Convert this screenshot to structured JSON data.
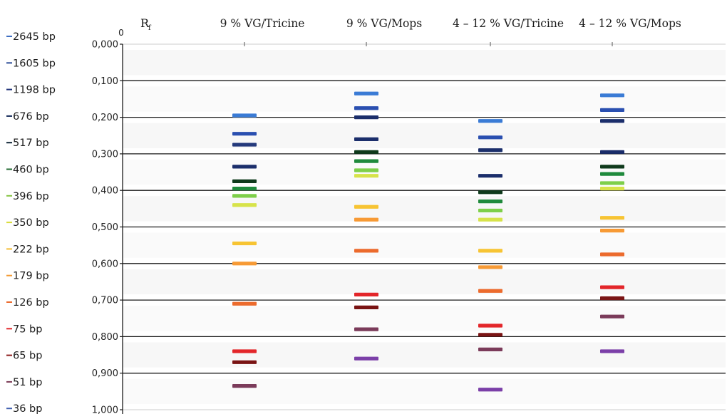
{
  "chart_data": {
    "type": "scatter",
    "title": "",
    "ylabel": "R",
    "ylabel_subscript": "f",
    "axis_origin_label": "0",
    "ylim": [
      0,
      1
    ],
    "y_ticks": [
      "0,000",
      "0,100",
      "0,200",
      "0,300",
      "0,400",
      "0,500",
      "0,600",
      "0,700",
      "0,800",
      "0,900",
      "1,000"
    ],
    "grid": true,
    "lanes": [
      "9 % VG/Tricine",
      "9 % VG/Mops",
      "4 – 12 % VG/Tricine",
      "4 – 12 % VG/Mops"
    ],
    "markers": [
      {
        "label": "2645 bp",
        "color": "#3f6fc2"
      },
      {
        "label": "1605 bp",
        "color": "#2f4f99"
      },
      {
        "label": "1198 bp",
        "color": "#1f3278"
      },
      {
        "label": "676 bp",
        "color": "#142a5a"
      },
      {
        "label": "517 bp",
        "color": "#0f2436"
      },
      {
        "label": "460 bp",
        "color": "#236b33"
      },
      {
        "label": "396 bp",
        "color": "#86c442"
      },
      {
        "label": "350 bp",
        "color": "#d9dc3b"
      },
      {
        "label": "222 bp",
        "color": "#f3bc35"
      },
      {
        "label": "179 bp",
        "color": "#f39a32"
      },
      {
        "label": "126 bp",
        "color": "#ec6b2d"
      },
      {
        "label": "75 bp",
        "color": "#e3262a"
      },
      {
        "label": "65 bp",
        "color": "#8c1a1a"
      },
      {
        "label": "51 bp",
        "color": "#7b3b55"
      },
      {
        "label": "36 bp",
        "color": "#3f5fb0"
      }
    ],
    "series": [
      {
        "lane": "9 % VG/Tricine",
        "bands": [
          {
            "rf": 0.195,
            "color": "#3a7bd5"
          },
          {
            "rf": 0.245,
            "color": "#2a4fb0"
          },
          {
            "rf": 0.275,
            "color": "#253a7c"
          },
          {
            "rf": 0.335,
            "color": "#1b2e6b"
          },
          {
            "rf": 0.375,
            "color": "#0f3a1c"
          },
          {
            "rf": 0.395,
            "color": "#1f8a3c"
          },
          {
            "rf": 0.415,
            "color": "#7ecf4a"
          },
          {
            "rf": 0.44,
            "color": "#d7e34a"
          },
          {
            "rf": 0.545,
            "color": "#f7c433"
          },
          {
            "rf": 0.6,
            "color": "#f79a35"
          },
          {
            "rf": 0.71,
            "color": "#ec6b2d"
          },
          {
            "rf": 0.84,
            "color": "#e3262a"
          },
          {
            "rf": 0.87,
            "color": "#7a1414"
          },
          {
            "rf": 0.935,
            "color": "#7b3b5a"
          }
        ]
      },
      {
        "lane": "9 % VG/Mops",
        "bands": [
          {
            "rf": 0.135,
            "color": "#3a7bd5"
          },
          {
            "rf": 0.175,
            "color": "#2a4fb0"
          },
          {
            "rf": 0.2,
            "color": "#1b2e6b"
          },
          {
            "rf": 0.26,
            "color": "#1b2e6b"
          },
          {
            "rf": 0.295,
            "color": "#0f3a1c"
          },
          {
            "rf": 0.32,
            "color": "#1f8a3c"
          },
          {
            "rf": 0.345,
            "color": "#7ecf4a"
          },
          {
            "rf": 0.36,
            "color": "#d7e34a"
          },
          {
            "rf": 0.445,
            "color": "#f7c433"
          },
          {
            "rf": 0.48,
            "color": "#f79a35"
          },
          {
            "rf": 0.565,
            "color": "#ec6b2d"
          },
          {
            "rf": 0.685,
            "color": "#e3262a"
          },
          {
            "rf": 0.72,
            "color": "#7a1414"
          },
          {
            "rf": 0.78,
            "color": "#7b3b5a"
          },
          {
            "rf": 0.86,
            "color": "#7b3fa8"
          }
        ]
      },
      {
        "lane": "4 – 12 % VG/Tricine",
        "bands": [
          {
            "rf": 0.21,
            "color": "#3a7bd5"
          },
          {
            "rf": 0.255,
            "color": "#2a4fb0"
          },
          {
            "rf": 0.29,
            "color": "#1b2e6b"
          },
          {
            "rf": 0.36,
            "color": "#1b2e6b"
          },
          {
            "rf": 0.405,
            "color": "#0f3a1c"
          },
          {
            "rf": 0.43,
            "color": "#1f8a3c"
          },
          {
            "rf": 0.455,
            "color": "#7ecf4a"
          },
          {
            "rf": 0.48,
            "color": "#d7e34a"
          },
          {
            "rf": 0.565,
            "color": "#f7c433"
          },
          {
            "rf": 0.61,
            "color": "#f79a35"
          },
          {
            "rf": 0.675,
            "color": "#ec6b2d"
          },
          {
            "rf": 0.77,
            "color": "#e3262a"
          },
          {
            "rf": 0.795,
            "color": "#7a1414"
          },
          {
            "rf": 0.835,
            "color": "#7b3b5a"
          },
          {
            "rf": 0.945,
            "color": "#7b3fa8"
          }
        ]
      },
      {
        "lane": "4 – 12 % VG/Mops",
        "bands": [
          {
            "rf": 0.14,
            "color": "#3a7bd5"
          },
          {
            "rf": 0.18,
            "color": "#2a4fb0"
          },
          {
            "rf": 0.21,
            "color": "#1b2e6b"
          },
          {
            "rf": 0.295,
            "color": "#1b2e6b"
          },
          {
            "rf": 0.335,
            "color": "#0f3a1c"
          },
          {
            "rf": 0.355,
            "color": "#1f8a3c"
          },
          {
            "rf": 0.38,
            "color": "#7ecf4a"
          },
          {
            "rf": 0.395,
            "color": "#d7e34a"
          },
          {
            "rf": 0.475,
            "color": "#f7c433"
          },
          {
            "rf": 0.51,
            "color": "#f79a35"
          },
          {
            "rf": 0.575,
            "color": "#ec6b2d"
          },
          {
            "rf": 0.665,
            "color": "#e3262a"
          },
          {
            "rf": 0.695,
            "color": "#7a1414"
          },
          {
            "rf": 0.745,
            "color": "#7b3b5a"
          },
          {
            "rf": 0.84,
            "color": "#7b3fa8"
          }
        ]
      }
    ]
  }
}
